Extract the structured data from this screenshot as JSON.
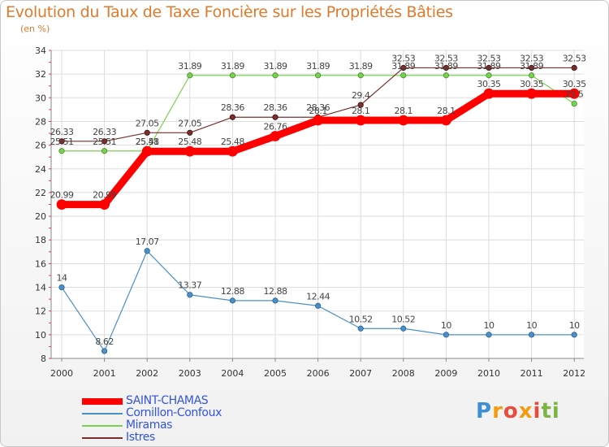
{
  "header": {
    "title": "Evolution du Taux de Taxe Foncière sur les Propriétés Bâties",
    "unit": "(en %)"
  },
  "logo": {
    "text": "Proxiti"
  },
  "chart_data": {
    "type": "line",
    "title": "Evolution du Taux de Taxe Foncière sur les Propriétés Bâties",
    "ylabel": "(en %)",
    "xlabel": "",
    "x": [
      "2000",
      "2001",
      "2002",
      "2003",
      "2004",
      "2005",
      "2006",
      "2007",
      "2008",
      "2009",
      "2010",
      "2011",
      "2012"
    ],
    "ylim": [
      8,
      34
    ],
    "yticks": [
      "8",
      "10",
      "12",
      "14",
      "16",
      "18",
      "20",
      "22",
      "24",
      "26",
      "28",
      "30",
      "32",
      "34"
    ],
    "grid": true,
    "legend_position": "bottom-left",
    "series": [
      {
        "name": "SAINT-CHAMAS",
        "color": "#ff0000",
        "values": [
          20.99,
          20.99,
          25.48,
          25.48,
          25.48,
          26.76,
          28.1,
          28.1,
          28.1,
          28.1,
          30.35,
          30.35,
          30.35
        ],
        "labels": [
          "20.99",
          "20.99",
          "25.48",
          "25.48",
          "25.48",
          "26.76",
          "28.1",
          "28.1",
          "28.1",
          "28.1",
          "30.35",
          "30.35",
          "30.35"
        ]
      },
      {
        "name": "Cornillon-Confoux",
        "color": "#4a90c8",
        "values": [
          14,
          8.62,
          17.07,
          13.37,
          12.88,
          12.88,
          12.44,
          10.52,
          10.52,
          10,
          10,
          10,
          10
        ],
        "labels": [
          "14",
          "8.62",
          "17.07",
          "13.37",
          "12.88",
          "12.88",
          "12.44",
          "10.52",
          "10.52",
          "10",
          "10",
          "10",
          "10"
        ]
      },
      {
        "name": "Miramas",
        "color": "#7ad151",
        "values": [
          25.51,
          25.51,
          25.51,
          31.89,
          31.89,
          31.89,
          31.89,
          31.89,
          31.89,
          31.89,
          31.89,
          31.89,
          29.5
        ],
        "labels": [
          "25.51",
          "25.51",
          "25.51",
          "31.89",
          "31.89",
          "31.89",
          "31.89",
          "31.89",
          "31.89",
          "31.89",
          "31.89",
          "31.89",
          "29.5"
        ]
      },
      {
        "name": "Istres",
        "color": "#7a2e2e",
        "values": [
          26.33,
          26.33,
          27.05,
          27.05,
          28.36,
          28.36,
          28.36,
          29.4,
          32.53,
          32.53,
          32.53,
          32.53,
          32.53
        ],
        "labels": [
          "26.33",
          "26.33",
          "27.05",
          "27.05",
          "28.36",
          "28.36",
          "28.36",
          "29.4",
          "32.53",
          "32.53",
          "32.53",
          "32.53",
          "32.53"
        ]
      }
    ]
  }
}
